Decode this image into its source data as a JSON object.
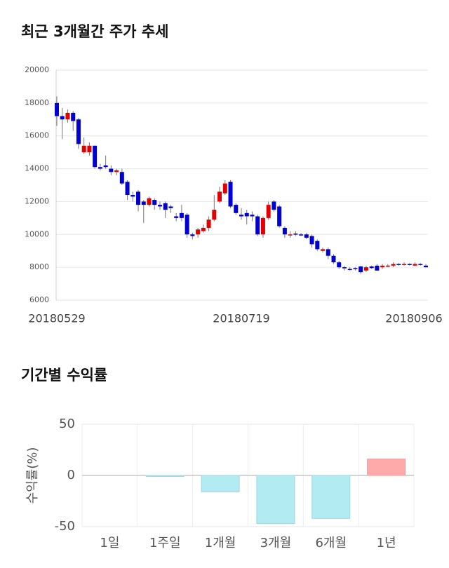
{
  "chart_data": [
    {
      "type": "candlestick",
      "title": "최근 3개월간 주가 추세",
      "categories": [
        "20180529",
        null,
        null,
        null,
        null,
        null,
        null,
        null,
        null,
        null,
        null,
        null,
        null,
        null,
        null,
        null,
        null,
        null,
        null,
        null,
        null,
        null,
        null,
        null,
        null,
        null,
        null,
        null,
        null,
        null,
        null,
        null,
        null,
        null,
        "20180719",
        null,
        null,
        null,
        null,
        null,
        null,
        null,
        null,
        null,
        null,
        null,
        null,
        null,
        null,
        null,
        null,
        null,
        null,
        null,
        null,
        null,
        null,
        null,
        null,
        null,
        null,
        null,
        null,
        null,
        null,
        null,
        null,
        null,
        "20180906"
      ],
      "open": [
        18000,
        17200,
        17000,
        17400,
        17000,
        15000,
        15000,
        15400,
        14100,
        14200,
        14000,
        13800,
        13800,
        13200,
        12400,
        12600,
        12000,
        11800,
        12100,
        11800,
        11900,
        11700,
        11100,
        11300,
        11200,
        10000,
        10000,
        10200,
        10400,
        10900,
        12000,
        12500,
        13200,
        11800,
        11200,
        11300,
        11200,
        11100,
        10000,
        11000,
        12000,
        11700,
        10400,
        10000,
        10050,
        10000,
        10000,
        9900,
        9600,
        9000,
        9100,
        8700,
        8300,
        8000,
        7900,
        7950,
        8050,
        7800,
        8050,
        8100,
        8000,
        8100,
        8100,
        8200,
        8200,
        8200,
        8100,
        8200,
        8100
      ],
      "high": [
        18400,
        17700,
        17600,
        17500,
        17100,
        15900,
        15600,
        15400,
        14300,
        14800,
        14200,
        14000,
        14000,
        13300,
        12600,
        12700,
        12100,
        12300,
        12200,
        12000,
        12000,
        11800,
        11300,
        11800,
        11300,
        10100,
        10400,
        10600,
        11100,
        12400,
        12900,
        13300,
        13300,
        11900,
        11600,
        11500,
        11400,
        11200,
        11100,
        12000,
        12100,
        11800,
        10500,
        10200,
        10200,
        10100,
        10100,
        10000,
        9700,
        9200,
        9200,
        8800,
        8400,
        8100,
        8000,
        8000,
        8100,
        8100,
        8100,
        8200,
        8200,
        8200,
        8300,
        8250,
        8300,
        8250,
        8300,
        8250,
        8200
      ],
      "low": [
        16600,
        15800,
        16800,
        16300,
        15200,
        14900,
        14800,
        14000,
        13900,
        14000,
        13600,
        13600,
        13000,
        12100,
        12000,
        11400,
        10700,
        11700,
        11500,
        11500,
        11000,
        11300,
        10800,
        10800,
        9800,
        9700,
        9800,
        10100,
        10200,
        10800,
        11900,
        12400,
        11600,
        11200,
        10900,
        10600,
        10800,
        9900,
        9800,
        10900,
        11400,
        10400,
        9800,
        9800,
        9900,
        9900,
        9700,
        9200,
        9000,
        8900,
        8500,
        8200,
        7900,
        7800,
        7800,
        7800,
        7600,
        7700,
        7900,
        7800,
        7900,
        8000,
        8000,
        8100,
        8100,
        8100,
        8100,
        8100,
        8000
      ],
      "close": [
        17200,
        17000,
        17400,
        16900,
        15500,
        15400,
        15400,
        14100,
        14000,
        14100,
        13800,
        13900,
        13100,
        12400,
        12300,
        11800,
        11800,
        12200,
        11800,
        11700,
        11500,
        11600,
        11000,
        11000,
        10000,
        9900,
        10300,
        10400,
        10900,
        11500,
        12600,
        13100,
        11700,
        11300,
        11100,
        11100,
        11100,
        10000,
        11000,
        11800,
        11500,
        10500,
        10000,
        10000,
        10000,
        9950,
        9800,
        9400,
        9100,
        9100,
        8700,
        8300,
        8000,
        7950,
        7850,
        7900,
        7700,
        8000,
        7950,
        7800,
        8100,
        8100,
        8200,
        8150,
        8200,
        8150,
        8200,
        8150,
        8000
      ],
      "up_color": "#e00000",
      "down_color": "#0000d0",
      "ylim": [
        6000,
        20000
      ],
      "yticks": [
        6000,
        8000,
        10000,
        12000,
        14000,
        16000,
        18000,
        20000
      ],
      "grid": true
    },
    {
      "type": "bar",
      "title": "기간별 수익률",
      "ylabel": "수익률(%)",
      "categories": [
        "1일",
        "1주일",
        "1개월",
        "3개월",
        "6개월",
        "1년"
      ],
      "values": [
        0,
        -1,
        -16,
        -47,
        -42,
        16
      ],
      "positive_color": "#ffaaaa",
      "negative_color": "#b2ebf2",
      "ylim": [
        -50,
        50
      ],
      "yticks": [
        -50,
        0,
        50
      ],
      "grid": true
    }
  ]
}
